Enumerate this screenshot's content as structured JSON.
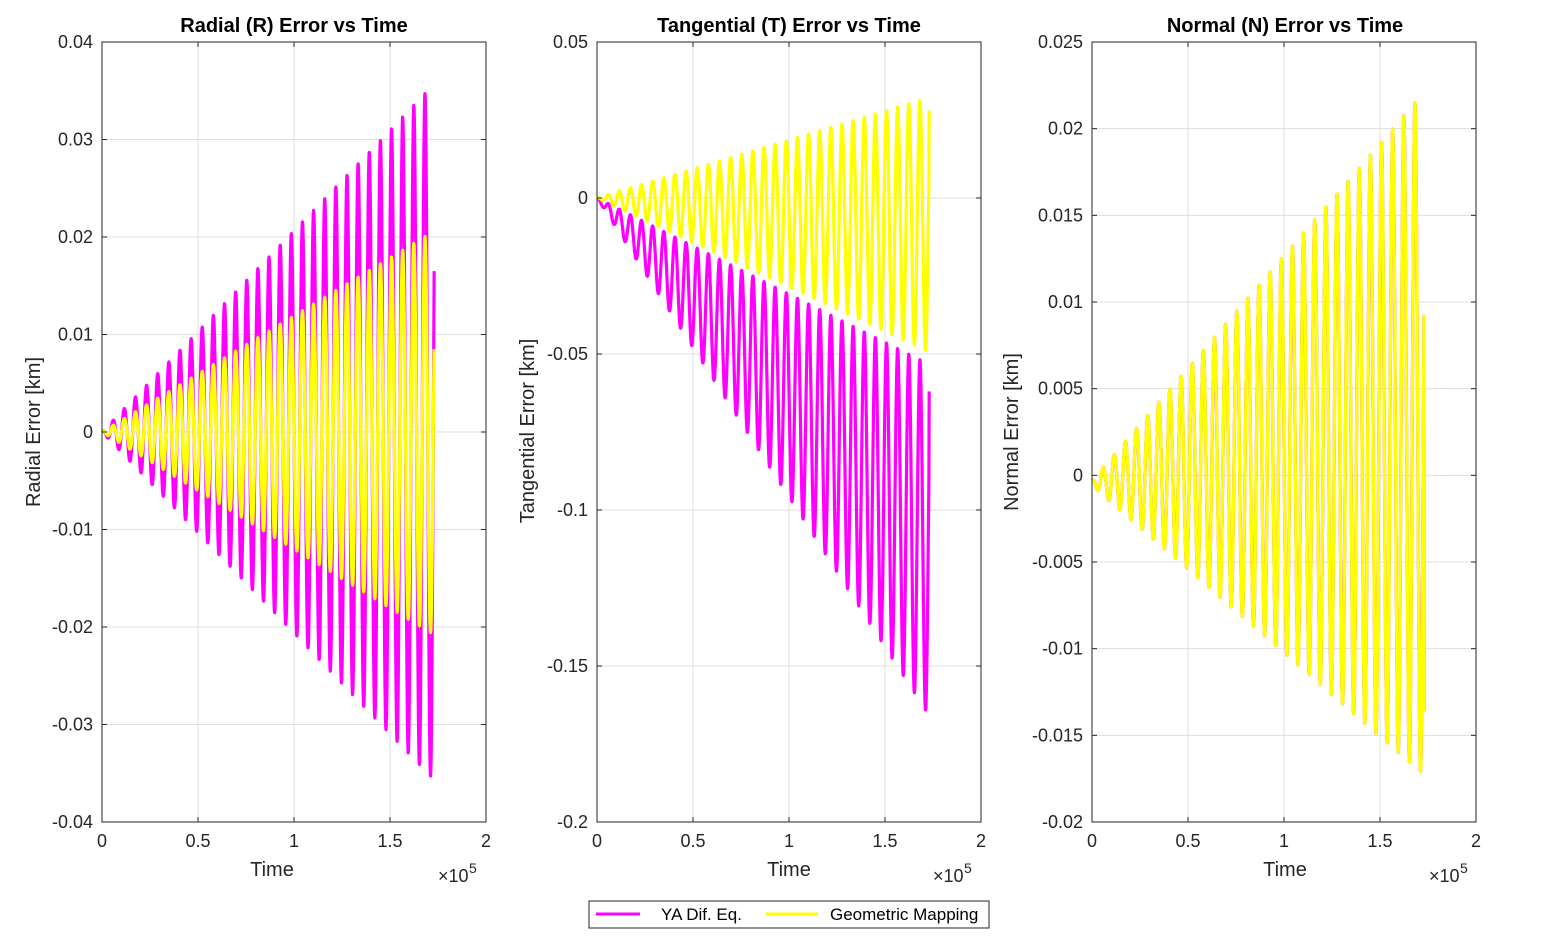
{
  "colors": {
    "ya": "#ff00ff",
    "geo": "#ffff00",
    "axis": "#262626",
    "grid": "#dfdfdf"
  },
  "legend": {
    "location": "bottom-center",
    "entries": [
      {
        "label": "YA Dif. Eq.",
        "color": "#ff00ff"
      },
      {
        "label": "Geometric Mapping",
        "color": "#ffff00"
      }
    ]
  },
  "chart_data": [
    {
      "type": "line",
      "title": "Radial (R) Error vs Time",
      "xlabel": "Time",
      "ylabel": "Radial Error [km]",
      "x_exponent": "5",
      "xlim": [
        0,
        200000
      ],
      "ylim": [
        -0.04,
        0.04
      ],
      "x_ticks": [
        0,
        50000,
        100000,
        150000,
        200000
      ],
      "x_tick_labels": [
        "0",
        "0.5",
        "1",
        "1.5",
        "2"
      ],
      "y_ticks": [
        -0.04,
        -0.03,
        -0.02,
        -0.01,
        0,
        0.01,
        0.02,
        0.03,
        0.04
      ],
      "y_tick_labels": [
        "-0.04",
        "-0.03",
        "-0.02",
        "-0.01",
        "0",
        "0.01",
        "0.02",
        "0.03",
        "0.04"
      ],
      "grid": true,
      "series": [
        {
          "name": "YA Dif. Eq.",
          "color": "#ff00ff",
          "form": "oscillation",
          "period": 5800,
          "t_end": 173000,
          "envelope_t": [
            0,
            172000
          ],
          "upper": [
            0.0,
            0.0355
          ],
          "lower": [
            0.0,
            -0.0355
          ],
          "end_value": 0.0165
        },
        {
          "name": "Geometric Mapping",
          "color": "#ffff00",
          "form": "oscillation",
          "period": 5800,
          "t_end": 173000,
          "envelope_t": [
            0,
            172000
          ],
          "upper": [
            0.0,
            0.0205
          ],
          "lower": [
            0.0,
            -0.0207
          ],
          "end_value": 0.0085
        }
      ]
    },
    {
      "type": "line",
      "title": "Tangential (T) Error vs Time",
      "xlabel": "Time",
      "ylabel": "Tangential Error [km]",
      "x_exponent": "5",
      "xlim": [
        0,
        200000
      ],
      "ylim": [
        -0.2,
        0.05
      ],
      "x_ticks": [
        0,
        50000,
        100000,
        150000,
        200000
      ],
      "x_tick_labels": [
        "0",
        "0.5",
        "1",
        "1.5",
        "2"
      ],
      "y_ticks": [
        -0.2,
        -0.15,
        -0.1,
        -0.05,
        0,
        0.05
      ],
      "y_tick_labels": [
        "-0.2",
        "-0.15",
        "-0.1",
        "-0.05",
        "0",
        "0.05"
      ],
      "grid": true,
      "series": [
        {
          "name": "YA Dif. Eq.",
          "color": "#ff00ff",
          "form": "oscillation",
          "period": 5800,
          "t_end": 173000,
          "envelope_t": [
            0,
            172000
          ],
          "upper": [
            0.0,
            -0.053
          ],
          "lower": [
            0.0,
            -0.165
          ],
          "end_value": -0.062
        },
        {
          "name": "Geometric Mapping",
          "color": "#ffff00",
          "form": "oscillation",
          "period": 5800,
          "t_end": 173000,
          "envelope_t": [
            0,
            172000
          ],
          "upper": [
            0.0,
            0.032
          ],
          "lower": [
            0.0,
            -0.049
          ],
          "end_value": 0.028
        }
      ]
    },
    {
      "type": "line",
      "title": "Normal (N) Error vs Time",
      "xlabel": "Time",
      "ylabel": "Normal Error [km]",
      "x_exponent": "5",
      "xlim": [
        0,
        200000
      ],
      "ylim": [
        -0.02,
        0.025
      ],
      "x_ticks": [
        0,
        50000,
        100000,
        150000,
        200000
      ],
      "x_tick_labels": [
        "0",
        "0.5",
        "1",
        "1.5",
        "2"
      ],
      "y_ticks": [
        -0.02,
        -0.015,
        -0.01,
        -0.005,
        0,
        0.005,
        0.01,
        0.015,
        0.02,
        0.025
      ],
      "y_tick_labels": [
        "-0.02",
        "-0.015",
        "-0.01",
        "-0.005",
        "0",
        "0.005",
        "0.01",
        "0.015",
        "0.02",
        "0.025"
      ],
      "grid": true,
      "series": [
        {
          "name": "YA Dif. Eq.",
          "color": "#ff00ff",
          "form": "oscillation",
          "period": 5800,
          "t_end": 173000,
          "envelope_t": [
            0,
            172000
          ],
          "upper": [
            -0.0003,
            0.022
          ],
          "lower": [
            -0.0006,
            -0.0172
          ],
          "end_value": -0.0136
        },
        {
          "name": "Geometric Mapping",
          "color": "#ffff00",
          "form": "oscillation",
          "period": 5800,
          "t_end": 173000,
          "envelope_t": [
            0,
            172000
          ],
          "upper": [
            -0.0003,
            0.022
          ],
          "lower": [
            -0.0006,
            -0.0172
          ],
          "end_value": -0.0136
        }
      ]
    }
  ]
}
